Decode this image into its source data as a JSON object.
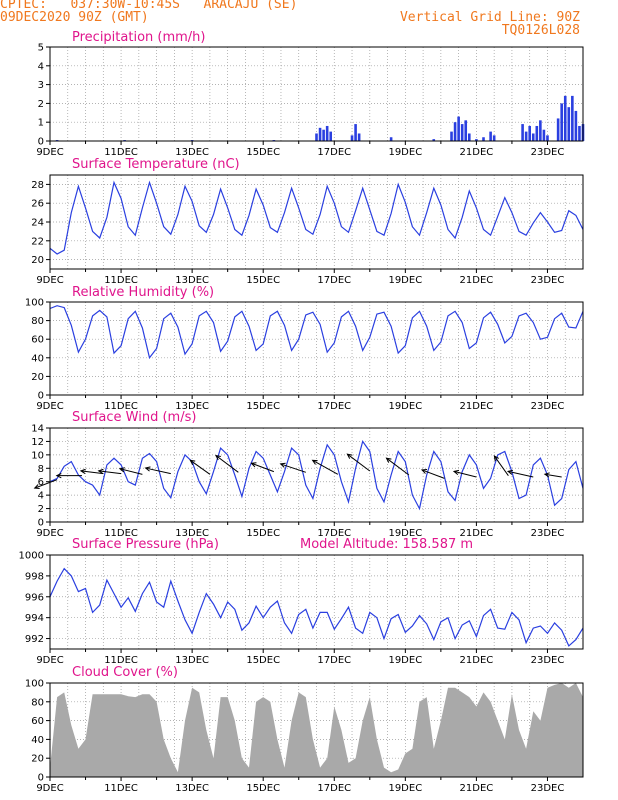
{
  "header": {
    "line1": "CPTEC:   037:30W-10:45S   ARACAJU (SE)",
    "line2": "09DEC2020 90Z (GMT)",
    "grid_note": "Vertical Grid Line: 90Z",
    "run_id": "TQ0126L028"
  },
  "x_axis": {
    "labels": [
      "9DEC",
      "11DEC",
      "13DEC",
      "15DEC",
      "17DEC",
      "19DEC",
      "21DEC",
      "23DEC"
    ],
    "label_days": [
      0,
      2,
      4,
      6,
      8,
      10,
      12,
      14
    ],
    "range_days": [
      0,
      15
    ]
  },
  "colors": {
    "line": "#2a3fe0",
    "cloud_fill": "#a9a9a9",
    "title": "#e0158c",
    "header": "#f0781e"
  },
  "chart_data": [
    {
      "type": "bar",
      "title": "Precipitation (mm/h)",
      "ylim": [
        0,
        5
      ],
      "yticks": [
        0,
        1,
        2,
        3,
        4,
        5
      ],
      "bars": [
        [
          0.2,
          0.05
        ],
        [
          2.1,
          0.05
        ],
        [
          4.0,
          0.05
        ],
        [
          6.3,
          0.05
        ],
        [
          7.5,
          0.4
        ],
        [
          7.6,
          0.7
        ],
        [
          7.7,
          0.6
        ],
        [
          7.8,
          0.8
        ],
        [
          7.9,
          0.5
        ],
        [
          8.5,
          0.3
        ],
        [
          8.6,
          0.9
        ],
        [
          8.7,
          0.4
        ],
        [
          9.6,
          0.2
        ],
        [
          10.8,
          0.1
        ],
        [
          11.3,
          0.5
        ],
        [
          11.4,
          1.0
        ],
        [
          11.5,
          1.3
        ],
        [
          11.6,
          0.9
        ],
        [
          11.7,
          1.1
        ],
        [
          11.8,
          0.4
        ],
        [
          12.0,
          0.1
        ],
        [
          12.2,
          0.2
        ],
        [
          12.4,
          0.5
        ],
        [
          12.5,
          0.3
        ],
        [
          13.3,
          0.9
        ],
        [
          13.4,
          0.5
        ],
        [
          13.5,
          0.8
        ],
        [
          13.6,
          0.4
        ],
        [
          13.7,
          0.8
        ],
        [
          13.8,
          1.1
        ],
        [
          13.9,
          0.6
        ],
        [
          14.0,
          0.3
        ],
        [
          14.3,
          1.2
        ],
        [
          14.4,
          2.0
        ],
        [
          14.5,
          2.4
        ],
        [
          14.6,
          1.8
        ],
        [
          14.7,
          2.4
        ],
        [
          14.8,
          1.6
        ],
        [
          14.9,
          0.8
        ],
        [
          15.0,
          0.9
        ]
      ]
    },
    {
      "type": "line",
      "title": "Surface Temperature (nC)",
      "ylim": [
        19,
        29
      ],
      "yticks": [
        20,
        22,
        24,
        26,
        28
      ],
      "x": [
        0,
        0.2,
        0.4,
        0.6,
        0.8,
        1.0,
        1.2,
        1.4,
        1.6,
        1.8,
        2.0,
        2.2,
        2.4,
        2.6,
        2.8,
        3.0,
        3.2,
        3.4,
        3.6,
        3.8,
        4.0,
        4.2,
        4.4,
        4.6,
        4.8,
        5.0,
        5.2,
        5.4,
        5.6,
        5.8,
        6.0,
        6.2,
        6.4,
        6.6,
        6.8,
        7.0,
        7.2,
        7.4,
        7.6,
        7.8,
        8.0,
        8.2,
        8.4,
        8.6,
        8.8,
        9.0,
        9.2,
        9.4,
        9.6,
        9.8,
        10.0,
        10.2,
        10.4,
        10.6,
        10.8,
        11.0,
        11.2,
        11.4,
        11.6,
        11.8,
        12.0,
        12.2,
        12.4,
        12.6,
        12.8,
        13.0,
        13.2,
        13.4,
        13.6,
        13.8,
        14.0,
        14.2,
        14.4,
        14.6,
        14.8,
        15.0
      ],
      "y": [
        21.2,
        20.6,
        21.0,
        25.0,
        27.8,
        25.5,
        23.0,
        22.3,
        24.5,
        28.2,
        26.5,
        23.5,
        22.6,
        25.5,
        28.2,
        26.0,
        23.5,
        22.7,
        24.8,
        27.8,
        26.2,
        23.6,
        22.9,
        24.8,
        27.5,
        25.5,
        23.2,
        22.6,
        24.7,
        27.5,
        25.8,
        23.4,
        22.9,
        25.0,
        27.6,
        25.5,
        23.2,
        22.7,
        24.8,
        27.8,
        26.0,
        23.5,
        22.9,
        25.2,
        27.6,
        25.3,
        23.0,
        22.6,
        24.9,
        28.0,
        26.1,
        23.5,
        22.6,
        25.0,
        27.6,
        25.8,
        23.2,
        22.3,
        24.5,
        27.3,
        25.5,
        23.2,
        22.6,
        24.6,
        26.6,
        25.0,
        23.0,
        22.6,
        23.9,
        25.0,
        24.0,
        22.9,
        23.1,
        25.2,
        24.7,
        23.2
      ]
    },
    {
      "type": "line",
      "title": "Relative Humidity (%)",
      "ylim": [
        0,
        100
      ],
      "yticks": [
        0,
        20,
        40,
        60,
        80,
        100
      ],
      "x": [
        0,
        0.2,
        0.4,
        0.6,
        0.8,
        1.0,
        1.2,
        1.4,
        1.6,
        1.8,
        2.0,
        2.2,
        2.4,
        2.6,
        2.8,
        3.0,
        3.2,
        3.4,
        3.6,
        3.8,
        4.0,
        4.2,
        4.4,
        4.6,
        4.8,
        5.0,
        5.2,
        5.4,
        5.6,
        5.8,
        6.0,
        6.2,
        6.4,
        6.6,
        6.8,
        7.0,
        7.2,
        7.4,
        7.6,
        7.8,
        8.0,
        8.2,
        8.4,
        8.6,
        8.8,
        9.0,
        9.2,
        9.4,
        9.6,
        9.8,
        10.0,
        10.2,
        10.4,
        10.6,
        10.8,
        11.0,
        11.2,
        11.4,
        11.6,
        11.8,
        12.0,
        12.2,
        12.4,
        12.6,
        12.8,
        13.0,
        13.2,
        13.4,
        13.6,
        13.8,
        14.0,
        14.2,
        14.4,
        14.6,
        14.8,
        15.0
      ],
      "y": [
        93,
        96,
        94,
        75,
        46,
        60,
        85,
        91,
        84,
        45,
        53,
        82,
        90,
        72,
        40,
        50,
        82,
        88,
        73,
        44,
        55,
        85,
        90,
        78,
        47,
        58,
        84,
        90,
        74,
        48,
        55,
        85,
        90,
        75,
        48,
        60,
        86,
        89,
        76,
        46,
        56,
        84,
        90,
        74,
        48,
        62,
        87,
        89,
        74,
        45,
        53,
        83,
        90,
        74,
        48,
        57,
        85,
        90,
        78,
        50,
        56,
        83,
        89,
        76,
        56,
        63,
        85,
        88,
        78,
        60,
        62,
        82,
        88,
        73,
        72,
        90
      ]
    },
    {
      "type": "line",
      "title": "Surface Wind (m/s)",
      "ylim": [
        0,
        14
      ],
      "yticks": [
        0,
        2,
        4,
        6,
        8,
        10,
        12,
        14
      ],
      "x": [
        0,
        0.2,
        0.4,
        0.6,
        0.8,
        1.0,
        1.2,
        1.4,
        1.6,
        1.8,
        2.0,
        2.2,
        2.4,
        2.6,
        2.8,
        3.0,
        3.2,
        3.4,
        3.6,
        3.8,
        4.0,
        4.2,
        4.4,
        4.6,
        4.8,
        5.0,
        5.2,
        5.4,
        5.6,
        5.8,
        6.0,
        6.2,
        6.4,
        6.6,
        6.8,
        7.0,
        7.2,
        7.4,
        7.6,
        7.8,
        8.0,
        8.2,
        8.4,
        8.6,
        8.8,
        9.0,
        9.2,
        9.4,
        9.6,
        9.8,
        10.0,
        10.2,
        10.4,
        10.6,
        10.8,
        11.0,
        11.2,
        11.4,
        11.6,
        11.8,
        12.0,
        12.2,
        12.4,
        12.6,
        12.8,
        13.0,
        13.2,
        13.4,
        13.6,
        13.8,
        14.0,
        14.2,
        14.4,
        14.6,
        14.8,
        15.0
      ],
      "y": [
        6.0,
        6.5,
        8.3,
        9.0,
        7.0,
        6.0,
        5.5,
        4.0,
        8.5,
        9.5,
        8.5,
        6.0,
        5.5,
        9.5,
        10.2,
        9.0,
        5.0,
        3.6,
        7.5,
        10.0,
        9.0,
        6.0,
        4.2,
        7.5,
        11.0,
        10.0,
        7.0,
        3.8,
        8.0,
        10.5,
        9.5,
        7.0,
        4.5,
        7.5,
        11.0,
        10.0,
        5.5,
        3.5,
        8.0,
        11.5,
        10.0,
        6.0,
        3.0,
        8.0,
        12.0,
        10.5,
        5.0,
        3.0,
        7.0,
        10.5,
        9.0,
        4.0,
        2.0,
        7.0,
        10.5,
        9.0,
        4.5,
        3.2,
        7.5,
        10.0,
        8.5,
        5.0,
        6.5,
        10.0,
        10.5,
        7.5,
        3.5,
        4.0,
        8.5,
        9.5,
        7.0,
        2.5,
        3.5,
        7.8,
        9.0,
        5.0
      ],
      "vectors": [
        [
          0.2,
          6.3,
          -0.8,
          -0.3
        ],
        [
          0.9,
          6.9,
          -0.9,
          0.0
        ],
        [
          1.5,
          7.2,
          -0.8,
          0.1
        ],
        [
          2.0,
          7.2,
          -0.8,
          0.1
        ],
        [
          2.6,
          7.1,
          -0.8,
          0.2
        ],
        [
          3.4,
          7.2,
          -0.9,
          0.2
        ],
        [
          4.5,
          7.1,
          -0.7,
          0.5
        ],
        [
          5.3,
          7.4,
          -0.8,
          0.6
        ],
        [
          6.3,
          7.5,
          -0.8,
          0.3
        ],
        [
          7.2,
          7.4,
          -0.9,
          0.3
        ],
        [
          8.1,
          7.1,
          -0.9,
          0.5
        ],
        [
          9.0,
          7.6,
          -0.8,
          0.6
        ],
        [
          10.1,
          7.0,
          -0.8,
          0.6
        ],
        [
          11.1,
          6.5,
          -0.8,
          0.3
        ],
        [
          12.0,
          6.7,
          -0.8,
          0.2
        ],
        [
          12.9,
          6.9,
          -0.5,
          0.7
        ],
        [
          13.6,
          6.7,
          -0.9,
          0.2
        ],
        [
          14.4,
          6.7,
          -0.6,
          0.1
        ]
      ]
    },
    {
      "type": "line",
      "title": "Surface Pressure (hPa)",
      "annotation": "Model Altitude: 158.587 m",
      "ylim": [
        991,
        1000
      ],
      "yticks": [
        992,
        994,
        996,
        998,
        1000
      ],
      "x": [
        0,
        0.2,
        0.4,
        0.6,
        0.8,
        1.0,
        1.2,
        1.4,
        1.6,
        1.8,
        2.0,
        2.2,
        2.4,
        2.6,
        2.8,
        3.0,
        3.2,
        3.4,
        3.6,
        3.8,
        4.0,
        4.2,
        4.4,
        4.6,
        4.8,
        5.0,
        5.2,
        5.4,
        5.6,
        5.8,
        6.0,
        6.2,
        6.4,
        6.6,
        6.8,
        7.0,
        7.2,
        7.4,
        7.6,
        7.8,
        8.0,
        8.2,
        8.4,
        8.6,
        8.8,
        9.0,
        9.2,
        9.4,
        9.6,
        9.8,
        10.0,
        10.2,
        10.4,
        10.6,
        10.8,
        11.0,
        11.2,
        11.4,
        11.6,
        11.8,
        12.0,
        12.2,
        12.4,
        12.6,
        12.8,
        13.0,
        13.2,
        13.4,
        13.6,
        13.8,
        14.0,
        14.2,
        14.4,
        14.6,
        14.8,
        15.0
      ],
      "y": [
        996.0,
        997.5,
        998.7,
        998.0,
        996.5,
        996.8,
        994.5,
        995.2,
        997.6,
        996.3,
        995.0,
        995.9,
        994.6,
        996.3,
        997.4,
        995.5,
        995.0,
        997.5,
        995.6,
        993.8,
        992.5,
        994.5,
        996.3,
        995.3,
        994.0,
        995.5,
        994.8,
        992.8,
        993.5,
        995.1,
        994.0,
        995.0,
        995.6,
        993.5,
        992.5,
        994.3,
        994.8,
        993.0,
        994.5,
        994.5,
        992.9,
        993.9,
        995.0,
        993.0,
        992.5,
        994.5,
        994.0,
        992.0,
        993.9,
        994.3,
        992.6,
        993.2,
        994.2,
        993.4,
        991.9,
        993.6,
        994.0,
        992.0,
        993.3,
        993.7,
        992.2,
        994.2,
        994.8,
        993.0,
        992.9,
        994.5,
        993.8,
        991.6,
        993.0,
        993.2,
        992.5,
        993.5,
        992.8,
        991.3,
        991.9,
        993.0
      ]
    },
    {
      "type": "area",
      "title": "Cloud Cover (%)",
      "ylim": [
        0,
        100
      ],
      "yticks": [
        0,
        20,
        40,
        60,
        80,
        100
      ],
      "x": [
        0,
        0.2,
        0.4,
        0.6,
        0.8,
        1.0,
        1.2,
        1.4,
        1.6,
        1.8,
        2.0,
        2.2,
        2.4,
        2.6,
        2.8,
        3.0,
        3.2,
        3.4,
        3.6,
        3.8,
        4.0,
        4.2,
        4.4,
        4.6,
        4.8,
        5.0,
        5.2,
        5.4,
        5.6,
        5.8,
        6.0,
        6.2,
        6.4,
        6.6,
        6.8,
        7.0,
        7.2,
        7.4,
        7.6,
        7.8,
        8.0,
        8.2,
        8.4,
        8.6,
        8.8,
        9.0,
        9.2,
        9.4,
        9.6,
        9.8,
        10.0,
        10.2,
        10.4,
        10.6,
        10.8,
        11.0,
        11.2,
        11.4,
        11.6,
        11.8,
        12.0,
        12.2,
        12.4,
        12.6,
        12.8,
        13.0,
        13.2,
        13.4,
        13.6,
        13.8,
        14.0,
        14.2,
        14.4,
        14.6,
        14.8,
        15.0
      ],
      "y": [
        10,
        85,
        90,
        55,
        30,
        40,
        88,
        88,
        88,
        88,
        88,
        86,
        85,
        88,
        88,
        80,
        40,
        20,
        5,
        60,
        95,
        90,
        50,
        20,
        85,
        85,
        60,
        20,
        10,
        80,
        85,
        80,
        40,
        10,
        60,
        90,
        85,
        40,
        10,
        20,
        75,
        50,
        15,
        20,
        60,
        85,
        40,
        10,
        5,
        8,
        25,
        30,
        80,
        85,
        30,
        60,
        95,
        95,
        90,
        85,
        75,
        90,
        80,
        60,
        40,
        88,
        50,
        30,
        70,
        60,
        95,
        98,
        100,
        95,
        100,
        85
      ]
    }
  ]
}
